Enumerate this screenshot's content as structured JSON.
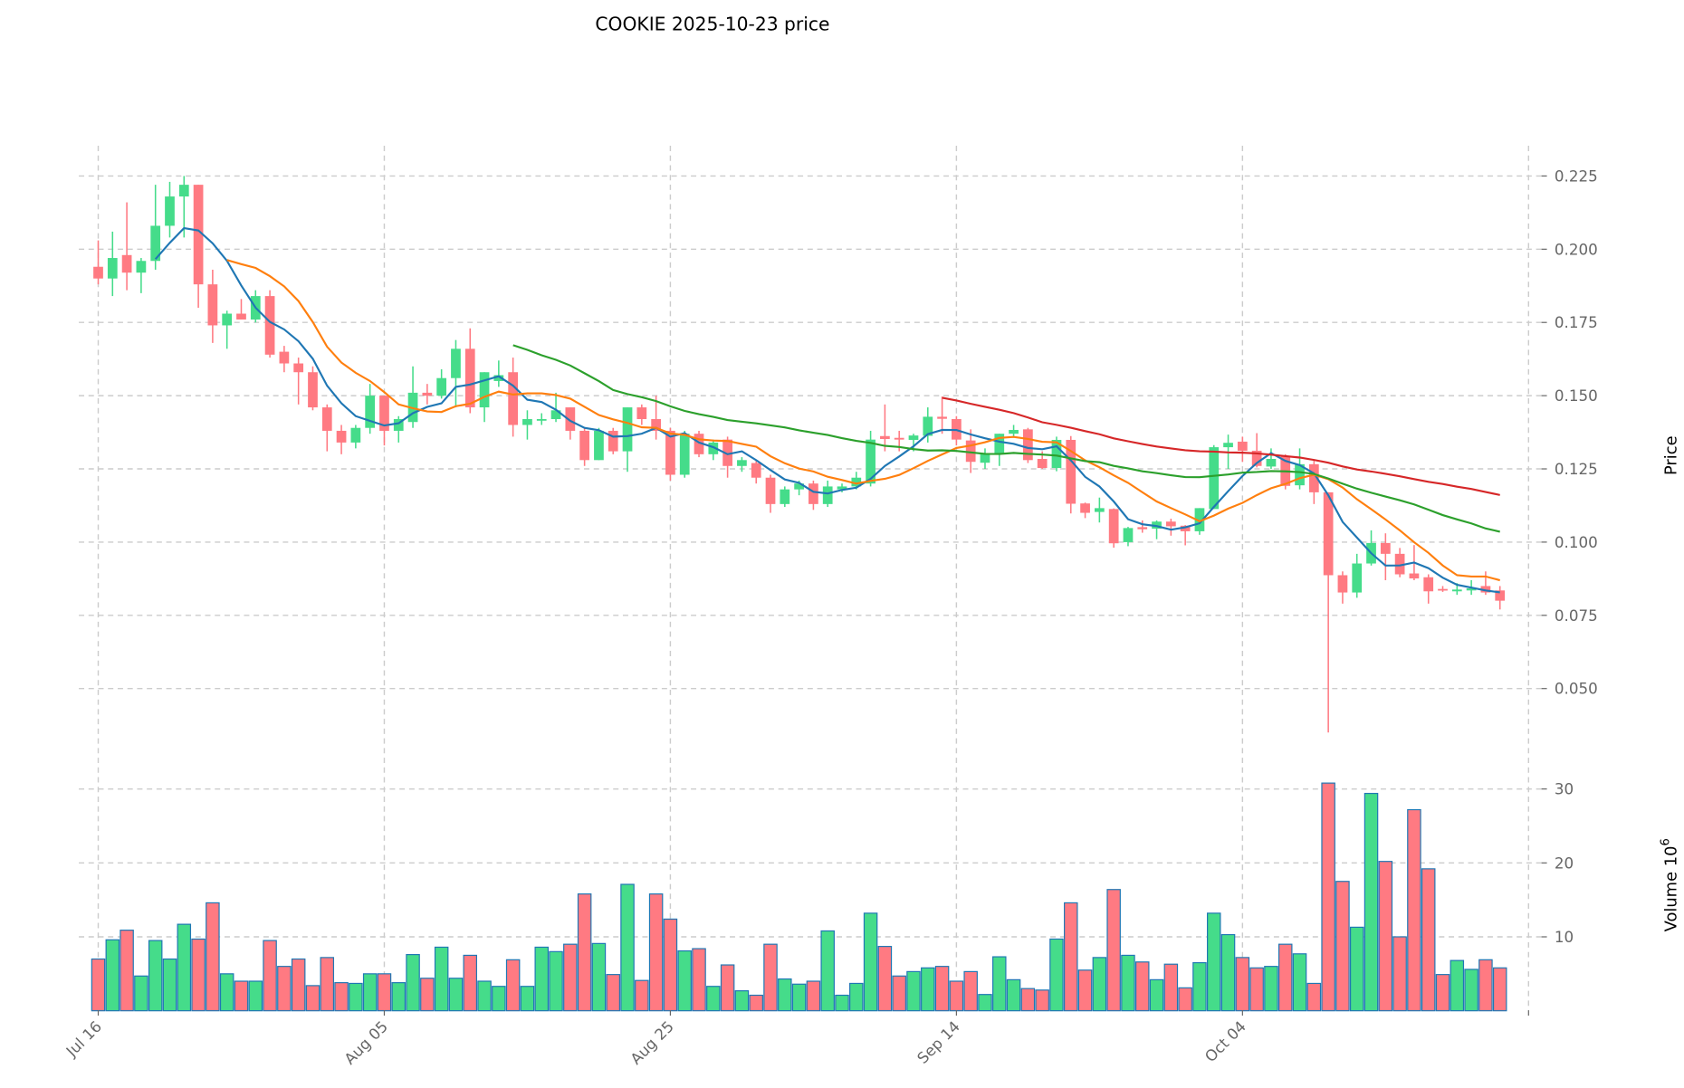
{
  "chart_data": {
    "type": "candlestick",
    "title": "COOKIE  2025-10-23  price",
    "price_ylabel": "Price",
    "volume_ylabel": "Volume",
    "volume_exponent": "6",
    "price_ylim": [
      0.03,
      0.235
    ],
    "volume_ylim": [
      0,
      32
    ],
    "price_yticks": [
      0.05,
      0.075,
      0.1,
      0.125,
      0.15,
      0.175,
      0.2,
      0.225
    ],
    "volume_yticks": [
      10,
      20,
      30
    ],
    "xticks": [
      {
        "index": 0,
        "label": "Jul 16"
      },
      {
        "index": 20,
        "label": "Aug 05"
      },
      {
        "index": 40,
        "label": "Aug 25"
      },
      {
        "index": 60,
        "label": "Sep 14"
      },
      {
        "index": 80,
        "label": "Oct 04"
      },
      {
        "index": 100,
        "label": ""
      }
    ],
    "grid": true,
    "colors": {
      "up": "#45dc8a",
      "down": "#ff7a82",
      "volume_edge": "#1f77b4"
    },
    "moving_averages": [
      {
        "window": 5,
        "color": "#1f77b4"
      },
      {
        "window": 10,
        "color": "#ff7f0e"
      },
      {
        "window": 30,
        "color": "#2ca02c"
      },
      {
        "window": 60,
        "color": "#d62728"
      }
    ],
    "ohlcv_columns": [
      "open",
      "high",
      "low",
      "close",
      "volume_millions"
    ],
    "ohlcv": [
      [
        0.194,
        0.203,
        0.188,
        0.19,
        7.0
      ],
      [
        0.19,
        0.206,
        0.184,
        0.197,
        9.6
      ],
      [
        0.198,
        0.216,
        0.186,
        0.192,
        10.9
      ],
      [
        0.192,
        0.197,
        0.185,
        0.196,
        4.7
      ],
      [
        0.196,
        0.222,
        0.193,
        0.208,
        9.5
      ],
      [
        0.208,
        0.223,
        0.204,
        0.218,
        7.0
      ],
      [
        0.218,
        0.225,
        0.204,
        0.222,
        11.7
      ],
      [
        0.222,
        0.222,
        0.18,
        0.188,
        9.7
      ],
      [
        0.188,
        0.193,
        0.168,
        0.174,
        14.6
      ],
      [
        0.174,
        0.179,
        0.166,
        0.178,
        5.0
      ],
      [
        0.178,
        0.183,
        0.176,
        0.176,
        4.0
      ],
      [
        0.176,
        0.186,
        0.175,
        0.184,
        4.0
      ],
      [
        0.184,
        0.186,
        0.163,
        0.164,
        9.5
      ],
      [
        0.165,
        0.167,
        0.158,
        0.161,
        6.0
      ],
      [
        0.161,
        0.163,
        0.147,
        0.158,
        7.0
      ],
      [
        0.158,
        0.16,
        0.145,
        0.146,
        3.4
      ],
      [
        0.146,
        0.147,
        0.131,
        0.138,
        7.2
      ],
      [
        0.138,
        0.14,
        0.13,
        0.134,
        3.8
      ],
      [
        0.134,
        0.14,
        0.132,
        0.139,
        3.7
      ],
      [
        0.139,
        0.154,
        0.137,
        0.15,
        5.0
      ],
      [
        0.15,
        0.15,
        0.133,
        0.138,
        5.0
      ],
      [
        0.138,
        0.143,
        0.134,
        0.142,
        3.8
      ],
      [
        0.141,
        0.16,
        0.139,
        0.151,
        7.6
      ],
      [
        0.151,
        0.154,
        0.147,
        0.15,
        4.4
      ],
      [
        0.15,
        0.159,
        0.149,
        0.156,
        8.6
      ],
      [
        0.156,
        0.169,
        0.146,
        0.166,
        4.4
      ],
      [
        0.166,
        0.173,
        0.144,
        0.146,
        7.5
      ],
      [
        0.146,
        0.158,
        0.141,
        0.158,
        4.0
      ],
      [
        0.155,
        0.162,
        0.153,
        0.157,
        3.3
      ],
      [
        0.158,
        0.163,
        0.136,
        0.14,
        6.9
      ],
      [
        0.14,
        0.145,
        0.135,
        0.142,
        3.3
      ],
      [
        0.142,
        0.144,
        0.14,
        0.142,
        8.6
      ],
      [
        0.142,
        0.151,
        0.141,
        0.145,
        8.0
      ],
      [
        0.146,
        0.146,
        0.135,
        0.138,
        9.0
      ],
      [
        0.138,
        0.139,
        0.126,
        0.128,
        15.8
      ],
      [
        0.128,
        0.139,
        0.128,
        0.138,
        9.1
      ],
      [
        0.138,
        0.139,
        0.13,
        0.131,
        4.9
      ],
      [
        0.131,
        0.146,
        0.124,
        0.146,
        17.1
      ],
      [
        0.146,
        0.147,
        0.14,
        0.142,
        4.1
      ],
      [
        0.142,
        0.15,
        0.135,
        0.138,
        15.8
      ],
      [
        0.138,
        0.139,
        0.121,
        0.123,
        12.4
      ],
      [
        0.123,
        0.138,
        0.122,
        0.137,
        8.1
      ],
      [
        0.137,
        0.138,
        0.129,
        0.13,
        8.4
      ],
      [
        0.13,
        0.135,
        0.128,
        0.134,
        3.3
      ],
      [
        0.135,
        0.136,
        0.122,
        0.126,
        6.2
      ],
      [
        0.126,
        0.129,
        0.124,
        0.128,
        2.7
      ],
      [
        0.127,
        0.128,
        0.12,
        0.122,
        2.1
      ],
      [
        0.122,
        0.123,
        0.11,
        0.113,
        9.0
      ],
      [
        0.113,
        0.119,
        0.112,
        0.118,
        4.3
      ],
      [
        0.118,
        0.121,
        0.116,
        0.12,
        3.6
      ],
      [
        0.12,
        0.121,
        0.111,
        0.113,
        4.0
      ],
      [
        0.113,
        0.121,
        0.112,
        0.119,
        10.8
      ],
      [
        0.118,
        0.12,
        0.117,
        0.119,
        2.1
      ],
      [
        0.119,
        0.124,
        0.118,
        0.122,
        3.7
      ],
      [
        0.12,
        0.138,
        0.119,
        0.135,
        13.2
      ],
      [
        0.1362,
        0.147,
        0.131,
        0.1352,
        8.7
      ],
      [
        0.1356,
        0.138,
        0.131,
        0.135,
        4.7
      ],
      [
        0.1349,
        0.137,
        0.131,
        0.1364,
        5.3
      ],
      [
        0.1363,
        0.146,
        0.134,
        0.1428,
        5.8
      ],
      [
        0.1428,
        0.1497,
        0.137,
        0.1421,
        6.0
      ],
      [
        0.142,
        0.143,
        0.133,
        0.135,
        4.0
      ],
      [
        0.1347,
        0.1385,
        0.1236,
        0.1274,
        5.3
      ],
      [
        0.1271,
        0.132,
        0.125,
        0.13,
        2.2
      ],
      [
        0.13,
        0.137,
        0.126,
        0.137,
        7.3
      ],
      [
        0.137,
        0.14,
        0.136,
        0.1383,
        4.2
      ],
      [
        0.1385,
        0.139,
        0.127,
        0.128,
        3.0
      ],
      [
        0.1284,
        0.131,
        0.125,
        0.1253,
        2.8
      ],
      [
        0.1253,
        0.136,
        0.1242,
        0.1349,
        9.7
      ],
      [
        0.1349,
        0.1362,
        0.1098,
        0.1131,
        14.6
      ],
      [
        0.1132,
        0.1135,
        0.1082,
        0.11,
        5.5
      ],
      [
        0.1103,
        0.1152,
        0.1067,
        0.1116,
        7.2
      ],
      [
        0.1113,
        0.1115,
        0.0981,
        0.0996,
        16.4
      ],
      [
        0.1,
        0.1052,
        0.0986,
        0.1048,
        7.5
      ],
      [
        0.1051,
        0.1074,
        0.1032,
        0.1044,
        6.6
      ],
      [
        0.1046,
        0.1074,
        0.101,
        0.107,
        4.2
      ],
      [
        0.107,
        0.108,
        0.1022,
        0.1054,
        6.3
      ],
      [
        0.1056,
        0.1058,
        0.0989,
        0.1037,
        3.1
      ],
      [
        0.1037,
        0.1116,
        0.1025,
        0.1116,
        6.5
      ],
      [
        0.1113,
        0.1331,
        0.1113,
        0.1324,
        13.2
      ],
      [
        0.1324,
        0.1367,
        0.125,
        0.1339,
        10.3
      ],
      [
        0.1343,
        0.136,
        0.1274,
        0.1312,
        7.2
      ],
      [
        0.1312,
        0.1372,
        0.1255,
        0.126,
        5.8
      ],
      [
        0.1258,
        0.132,
        0.125,
        0.1284,
        6.0
      ],
      [
        0.1292,
        0.13,
        0.118,
        0.1192,
        9.0
      ],
      [
        0.1194,
        0.132,
        0.118,
        0.1266,
        7.7
      ],
      [
        0.1266,
        0.128,
        0.113,
        0.117,
        3.7
      ],
      [
        0.117,
        0.117,
        0.035,
        0.0887,
        30.8
      ],
      [
        0.0887,
        0.09,
        0.079,
        0.0828,
        17.5
      ],
      [
        0.0828,
        0.096,
        0.081,
        0.0927,
        11.3
      ],
      [
        0.0927,
        0.104,
        0.092,
        0.0997,
        29.4
      ],
      [
        0.0997,
        0.103,
        0.087,
        0.096,
        20.2
      ],
      [
        0.096,
        0.098,
        0.088,
        0.089,
        10.0
      ],
      [
        0.0893,
        0.099,
        0.087,
        0.0876,
        27.2
      ],
      [
        0.088,
        0.089,
        0.079,
        0.0832,
        19.2
      ],
      [
        0.084,
        0.085,
        0.083,
        0.0835,
        4.9
      ],
      [
        0.0832,
        0.086,
        0.082,
        0.0838,
        6.8
      ],
      [
        0.0835,
        0.087,
        0.082,
        0.0842,
        5.6
      ],
      [
        0.085,
        0.09,
        0.082,
        0.0828,
        6.9
      ],
      [
        0.0835,
        0.085,
        0.077,
        0.08,
        5.8
      ]
    ]
  }
}
